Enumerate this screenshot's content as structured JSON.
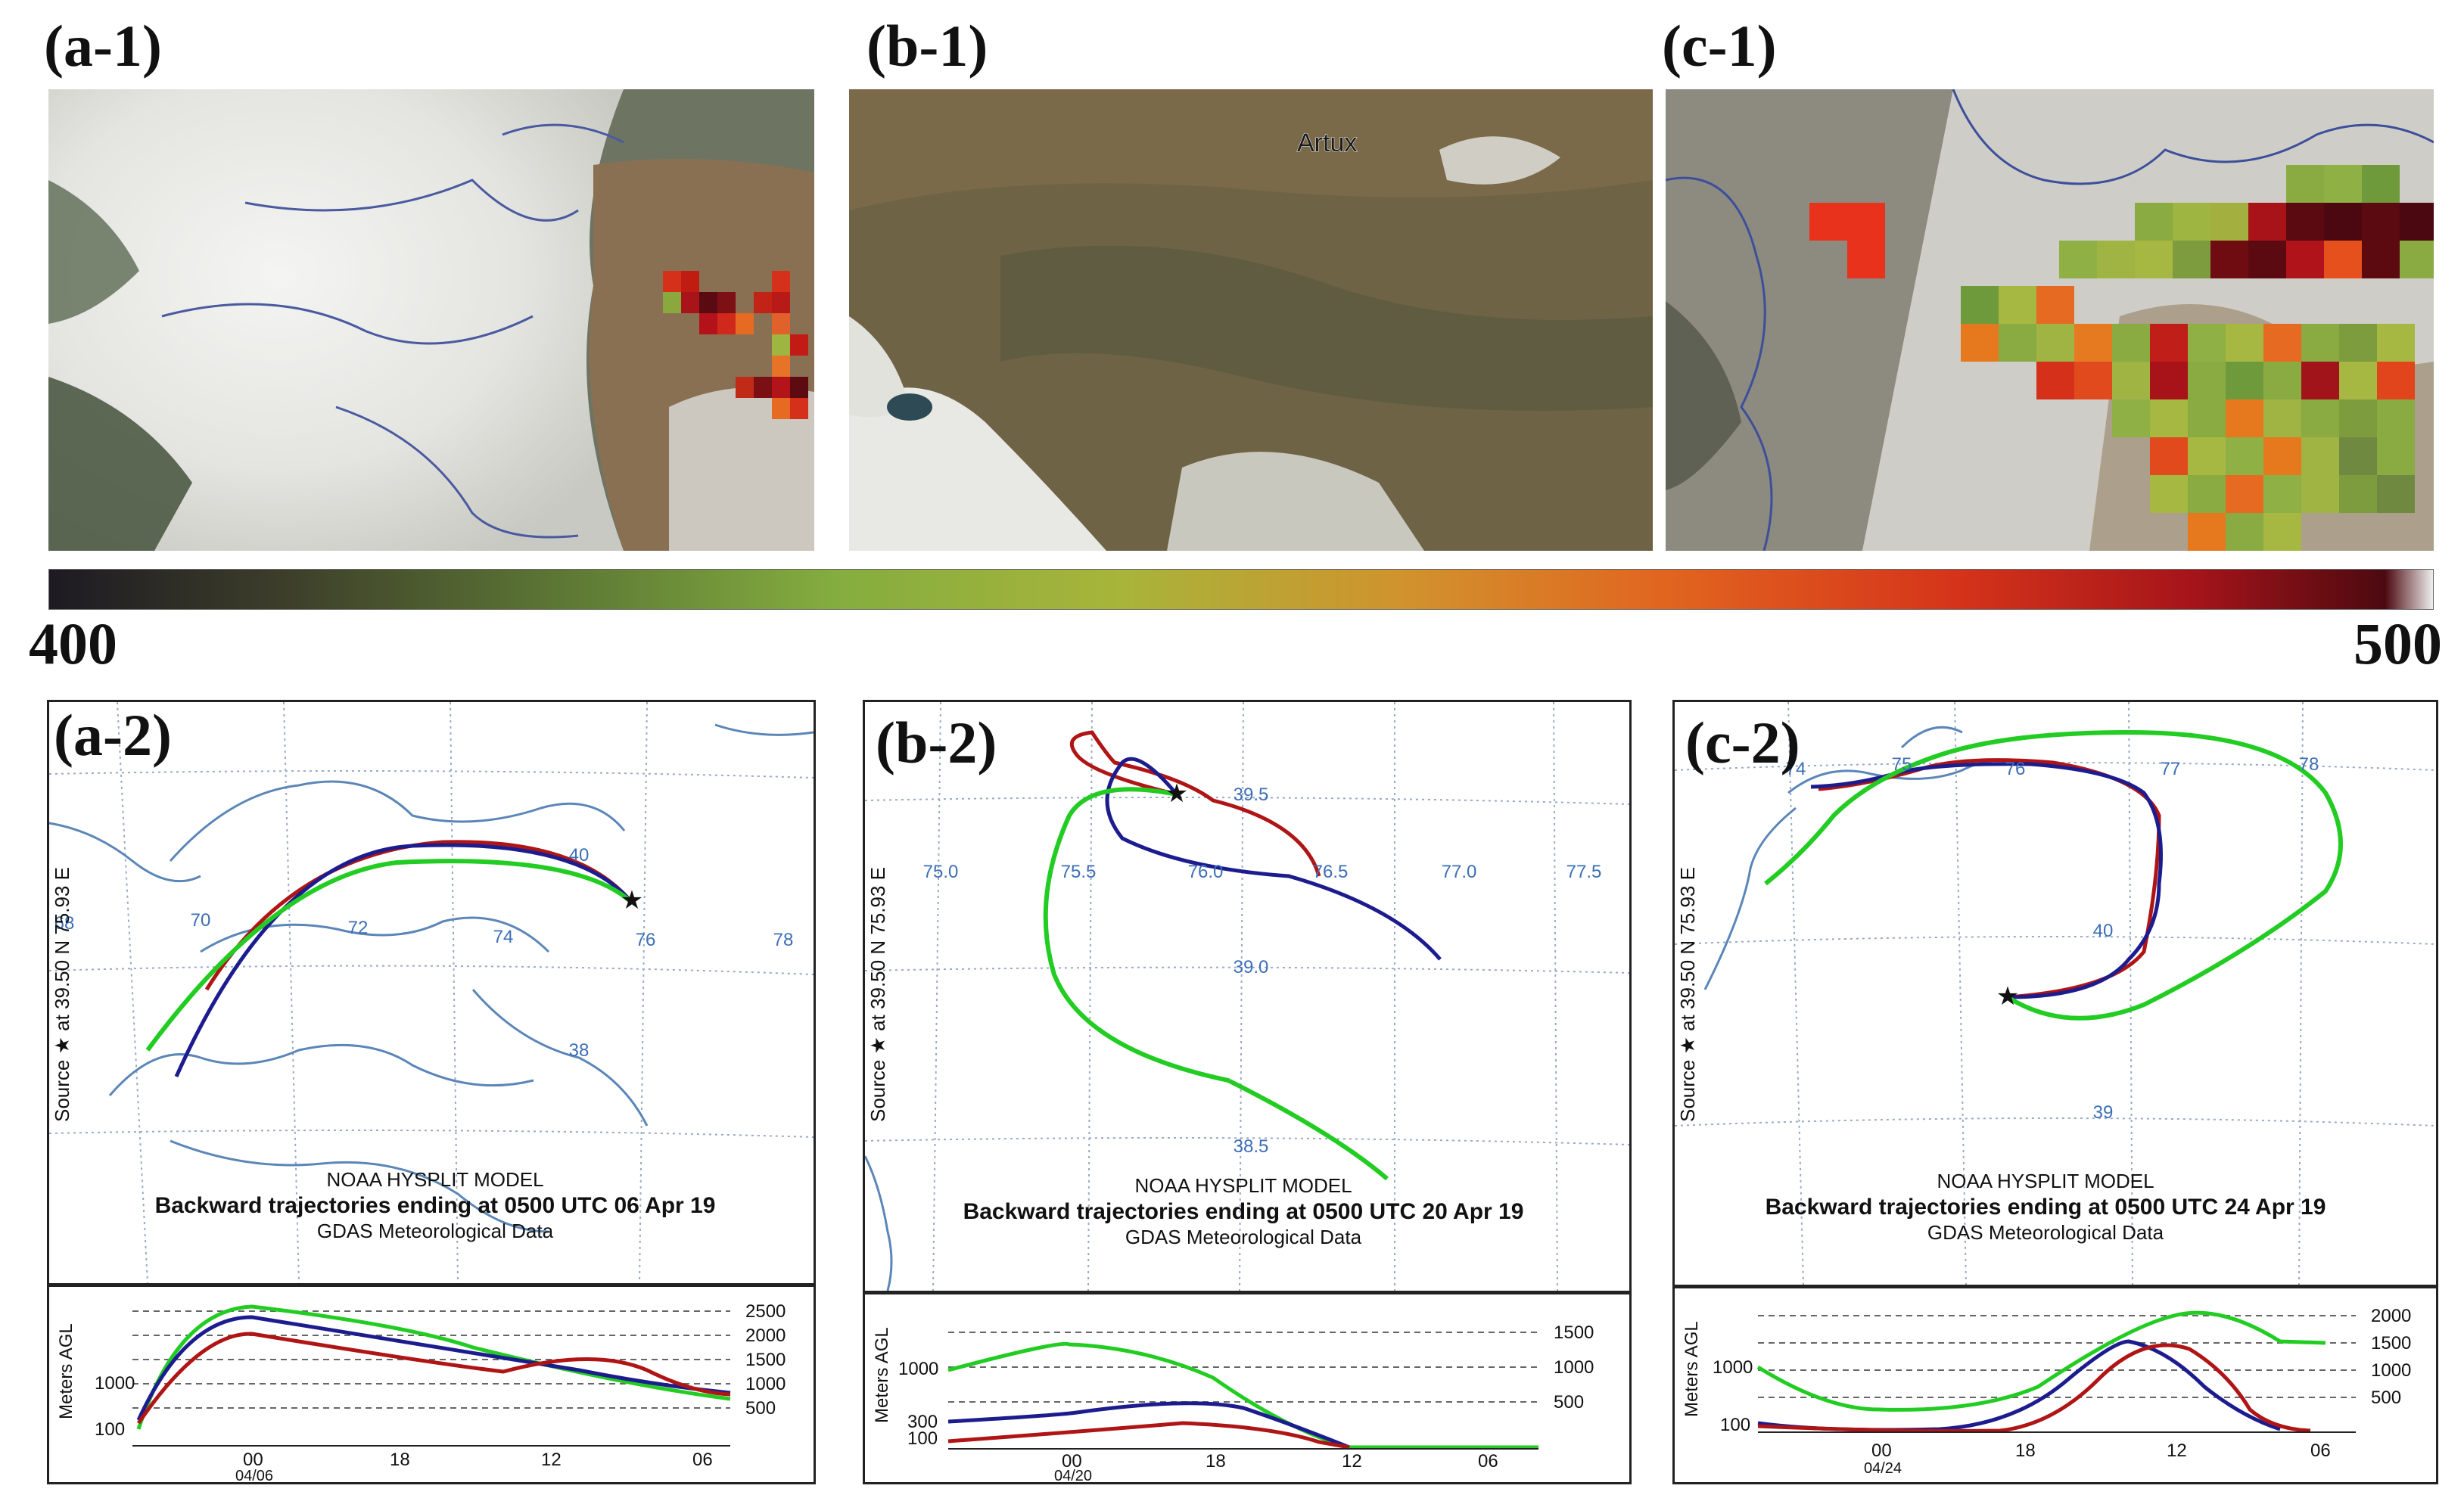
{
  "panels_top": [
    {
      "id": "a1",
      "label": "(a-1)"
    },
    {
      "id": "b1",
      "label": "(b-1)",
      "place": "Artux"
    },
    {
      "id": "c1",
      "label": "(c-1)"
    }
  ],
  "colorbar": {
    "min": "400",
    "max": "500"
  },
  "panels_bottom": [
    {
      "id": "a2",
      "label": "(a-2)",
      "source_text": "Source ★ at 39.50 N  75.93 E",
      "model": "NOAA HYSPLIT MODEL",
      "title": "Backward trajectories ending at 0500 UTC 06 Apr 19",
      "data_src": "GDAS Meteorological Data",
      "lon_ticks": [
        "68",
        "70",
        "72",
        "74",
        "76",
        "78"
      ],
      "lat_ticks": [
        "40",
        "38"
      ],
      "alt_ylabel": "Meters AGL",
      "alt_left": [
        "1000",
        "100"
      ],
      "alt_right": [
        "2500",
        "2000",
        "1500",
        "1000",
        "500"
      ],
      "time_ticks": [
        "00",
        "18",
        "12",
        "06"
      ],
      "date": "04/06"
    },
    {
      "id": "b2",
      "label": "(b-2)",
      "source_text": "Source ★ at 39.50 N  75.93 E",
      "model": "NOAA HYSPLIT MODEL",
      "title": "Backward trajectories ending at 0500 UTC 20 Apr 19",
      "data_src": "GDAS Meteorological Data",
      "lon_ticks": [
        "75.0",
        "75.5",
        "76.0",
        "76.5",
        "77.0",
        "77.5"
      ],
      "lat_ticks": [
        "39.5",
        "39.0",
        "38.5"
      ],
      "alt_ylabel": "Meters AGL",
      "alt_left": [
        "1000",
        "300",
        "100"
      ],
      "alt_right": [
        "1500",
        "1000",
        "500"
      ],
      "time_ticks": [
        "00",
        "18",
        "12",
        "06"
      ],
      "date": "04/20"
    },
    {
      "id": "c2",
      "label": "(c-2)",
      "source_text": "Source ★ at 39.50 N  75.93 E",
      "model": "NOAA HYSPLIT MODEL",
      "title": "Backward trajectories ending at 0500 UTC 24 Apr 19",
      "data_src": "GDAS Meteorological Data",
      "lon_ticks": [
        "74",
        "75",
        "76",
        "77",
        "78"
      ],
      "lat_ticks": [
        "40",
        "39"
      ],
      "alt_ylabel": "Meters AGL",
      "alt_left": [
        "1000",
        "100"
      ],
      "alt_right": [
        "2000",
        "1500",
        "1000",
        "500"
      ],
      "time_ticks": [
        "00",
        "18",
        "12",
        "06"
      ],
      "date": "04/24"
    }
  ],
  "colors": {
    "red": "#b01515",
    "blue": "#1c1c8f",
    "green": "#22cc22",
    "grid": "#9aa9c4",
    "border": "#5b86b8",
    "ticktext": "#3c6fb6"
  }
}
